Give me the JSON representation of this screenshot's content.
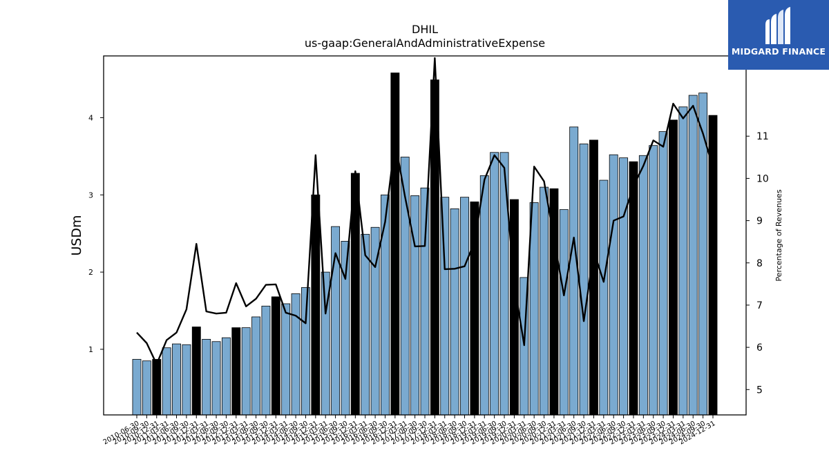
{
  "brand": {
    "name": "MIDGARD FINANCE",
    "logo_icon": "midgard-m-logo",
    "background": "#2a5bb0"
  },
  "chart_data": {
    "type": "bar",
    "title": "DHIL",
    "subtitle": "us-gaap:GeneralAndAdministrativeExpense",
    "ylabel": "USDm",
    "y2label": "Percentage of Revenues",
    "ylim": [
      0.15,
      4.8
    ],
    "y2lim": [
      4.4,
      12.9
    ],
    "yticks": [
      1,
      2,
      3,
      4
    ],
    "y2ticks": [
      5,
      6,
      7,
      8,
      9,
      10,
      11
    ],
    "colors": {
      "quarter": "#7aaad0",
      "year_end": "#000000",
      "line": "#000000"
    },
    "categories": [
      "2010-06-30",
      "2010-09-30",
      "2010-12-31",
      "2011-03-31",
      "2011-06-30",
      "2011-09-30",
      "2011-12-31",
      "2012-03-31",
      "2012-06-30",
      "2012-09-30",
      "2012-12-31",
      "2013-03-31",
      "2013-06-30",
      "2013-09-30",
      "2013-12-31",
      "2014-03-31",
      "2014-06-30",
      "2014-09-30",
      "2014-12-31",
      "2015-03-31",
      "2015-06-30",
      "2015-09-30",
      "2015-12-31",
      "2016-03-31",
      "2016-06-30",
      "2016-09-30",
      "2016-12-31",
      "2017-03-31",
      "2017-06-30",
      "2017-09-30",
      "2017-12-31",
      "2018-03-31",
      "2018-06-30",
      "2018-09-30",
      "2018-12-31",
      "2019-03-31",
      "2019-06-30",
      "2019-09-30",
      "2019-12-31",
      "2020-03-31",
      "2020-06-30",
      "2020-09-30",
      "2020-12-31",
      "2021-03-31",
      "2021-06-30",
      "2021-09-30",
      "2021-12-31",
      "2022-03-31",
      "2022-06-30",
      "2022-09-30",
      "2022-12-31",
      "2023-03-31",
      "2023-06-30",
      "2023-09-30",
      "2023-12-31",
      "2024-03-31",
      "2024-06-30",
      "2024-09-30",
      "2024-12-31"
    ],
    "series": [
      {
        "kind": "bar",
        "values": [
          0.87,
          0.85,
          0.87,
          1.02,
          1.07,
          1.06,
          1.29,
          1.13,
          1.1,
          1.15,
          1.28,
          1.28,
          1.42,
          1.56,
          1.68,
          1.59,
          1.72,
          1.8,
          3.0,
          2.0,
          2.59,
          2.4,
          3.28,
          2.49,
          2.58,
          3.0,
          4.58,
          3.49,
          2.99,
          3.09,
          4.49,
          2.97,
          2.82,
          2.97,
          2.91,
          3.25,
          3.55,
          3.55,
          2.94,
          1.93,
          2.9,
          3.1,
          3.08,
          2.81,
          3.88,
          3.66,
          3.71,
          3.19,
          3.52,
          3.48,
          3.43,
          3.51,
          3.64,
          3.82,
          3.97,
          4.14,
          4.29,
          4.32,
          4.03
        ],
        "year_end": [
          false,
          false,
          true,
          false,
          false,
          false,
          true,
          false,
          false,
          false,
          true,
          false,
          false,
          false,
          true,
          false,
          false,
          false,
          true,
          false,
          false,
          false,
          true,
          false,
          false,
          false,
          true,
          false,
          false,
          false,
          true,
          false,
          false,
          false,
          true,
          false,
          false,
          false,
          true,
          false,
          false,
          false,
          true,
          false,
          false,
          false,
          true,
          false,
          false,
          false,
          true,
          false,
          false,
          false,
          true,
          false,
          false,
          false,
          true
        ]
      },
      {
        "kind": "line",
        "axis": "right",
        "values": [
          6.35,
          6.1,
          5.6,
          6.17,
          6.35,
          6.9,
          8.45,
          6.85,
          6.8,
          6.82,
          7.52,
          6.97,
          7.15,
          7.48,
          7.49,
          6.82,
          6.75,
          6.57,
          10.55,
          6.8,
          8.23,
          7.62,
          10.17,
          8.18,
          7.9,
          8.97,
          10.88,
          9.57,
          8.39,
          8.4,
          12.85,
          7.85,
          7.86,
          7.92,
          8.5,
          9.97,
          10.55,
          10.25,
          7.5,
          6.05,
          10.28,
          9.93,
          8.57,
          7.23,
          8.6,
          6.62,
          8.28,
          7.55,
          9.0,
          9.1,
          9.82,
          10.3,
          10.9,
          10.75,
          11.77,
          11.42,
          11.72,
          11.06,
          10.26
        ]
      }
    ]
  }
}
